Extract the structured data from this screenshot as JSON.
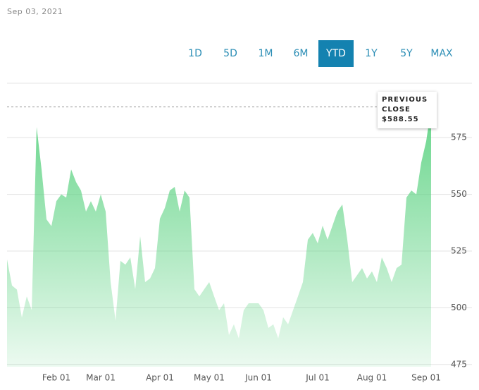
{
  "header": {
    "date": "Sep 03, 2021",
    "range_buttons": [
      "1D",
      "5D",
      "1M",
      "6M",
      "YTD",
      "1Y",
      "5Y",
      "MAX"
    ],
    "selected_range": 4
  },
  "chart_data": {
    "type": "area",
    "categories": [
      null,
      null,
      null,
      null,
      null,
      null,
      null,
      null,
      null,
      null,
      "Feb 01",
      null,
      null,
      null,
      null,
      null,
      null,
      null,
      null,
      "Mar 01",
      null,
      null,
      null,
      null,
      null,
      null,
      null,
      null,
      null,
      null,
      null,
      "Apr 01",
      null,
      null,
      null,
      null,
      null,
      null,
      null,
      null,
      null,
      "May 01",
      null,
      null,
      null,
      null,
      null,
      null,
      null,
      null,
      null,
      "Jun 01",
      null,
      null,
      null,
      null,
      null,
      null,
      null,
      null,
      null,
      null,
      null,
      "Jul 01",
      null,
      null,
      null,
      null,
      null,
      null,
      null,
      null,
      null,
      null,
      "Aug 01",
      null,
      null,
      null,
      null,
      null,
      null,
      null,
      null,
      null,
      null,
      "Sep 01",
      null
    ],
    "values": [
      521.3,
      509.8,
      508,
      495.7,
      505,
      499,
      579.7,
      561,
      539,
      536,
      547,
      550,
      548.6,
      561,
      555.4,
      551.7,
      542.4,
      547,
      542.4,
      550,
      542.4,
      511.3,
      494.3,
      520.7,
      519,
      522.2,
      508.2,
      531.5,
      511.3,
      512.9,
      517.5,
      539.3,
      544,
      551.7,
      553.3,
      542.4,
      551.7,
      548.6,
      508.2,
      505,
      508.2,
      511.3,
      505,
      498.9,
      502,
      488,
      492.7,
      486.5,
      498.9,
      502,
      502,
      502,
      498.9,
      491.1,
      492.7,
      486.5,
      495.8,
      492.7,
      498.9,
      505,
      511.3,
      530,
      533,
      528.4,
      536.2,
      530,
      536.2,
      542.4,
      545.5,
      530,
      511.3,
      514.4,
      517.5,
      512.9,
      516,
      511.3,
      522.2,
      517.5,
      511.3,
      517.5,
      519,
      548.6,
      551.7,
      550,
      564,
      573.4,
      588
    ],
    "color": "#5fd384",
    "ylim": [
      474,
      599
    ],
    "yticks": [
      475,
      500,
      525,
      550,
      575
    ],
    "grid": true,
    "reference": {
      "label": "PREVIOUS CLOSE",
      "value": 588.55,
      "value_label": "$588.55"
    }
  }
}
